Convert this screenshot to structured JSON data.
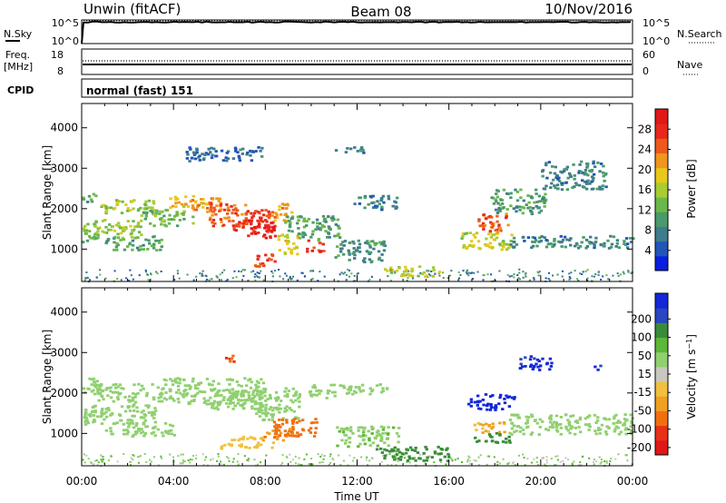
{
  "header": {
    "radar": "Unwin (fitACF)",
    "beam": "Beam 08",
    "date": "10/Nov/2016"
  },
  "top_panels": {
    "nsky": {
      "label": "N.Sky",
      "ticks": [
        "10^5",
        "10^0"
      ]
    },
    "nsearch": {
      "label": "N.Search",
      "ticks": [
        "10^5",
        "10^0"
      ]
    },
    "freq": {
      "label": "Freq.",
      "unit": "[MHz]",
      "ticks": [
        "18",
        "8"
      ]
    },
    "nave": {
      "label": "Nave",
      "ticks": [
        "60",
        "0"
      ]
    },
    "cpid": {
      "label": "CPID",
      "value": "normal (fast) 151"
    }
  },
  "chart_data": [
    {
      "type": "heatmap",
      "name": "power",
      "xlabel": "",
      "ylabel": "Slant Range [km]",
      "x_ticks": [
        "00:00",
        "04:00",
        "08:00",
        "12:00",
        "16:00",
        "20:00",
        "00:00"
      ],
      "x_range_hours": [
        0,
        24
      ],
      "y_ticks": [
        1000,
        2000,
        3000,
        4000
      ],
      "ylim": [
        200,
        4600
      ],
      "colorbar": {
        "label": "Power [dB]",
        "ticks": [
          4,
          8,
          12,
          16,
          20,
          24,
          28
        ],
        "range": [
          0,
          32
        ],
        "colors": [
          "#0a1ee0",
          "#2255b8",
          "#3f7c8c",
          "#4a9a6c",
          "#6bb84a",
          "#a8cc32",
          "#e8c81a",
          "#f0961c",
          "#ee5a1c",
          "#e8281c",
          "#e01818"
        ]
      },
      "regions": [
        {
          "t": [
            0.0,
            0.7
          ],
          "r": [
            1200,
            1700
          ],
          "v": 13
        },
        {
          "t": [
            0.0,
            0.6
          ],
          "r": [
            2150,
            2400
          ],
          "v": 10
        },
        {
          "t": [
            0.4,
            2.6
          ],
          "r": [
            1300,
            1750
          ],
          "v": 15
        },
        {
          "t": [
            0.8,
            3.2
          ],
          "r": [
            1900,
            2250
          ],
          "v": 16
        },
        {
          "t": [
            1.0,
            3.5
          ],
          "r": [
            1000,
            1350
          ],
          "v": 11
        },
        {
          "t": [
            2.5,
            4.8
          ],
          "r": [
            1600,
            2000
          ],
          "v": 13
        },
        {
          "t": [
            3.8,
            5.6
          ],
          "r": [
            2050,
            2350
          ],
          "v": 20
        },
        {
          "t": [
            4.6,
            6.0
          ],
          "r": [
            1950,
            2300
          ],
          "v": 23
        },
        {
          "t": [
            5.5,
            7.2
          ],
          "r": [
            1600,
            2150
          ],
          "v": 25
        },
        {
          "t": [
            6.5,
            8.3
          ],
          "r": [
            1450,
            2000
          ],
          "v": 27
        },
        {
          "t": [
            7.2,
            8.5
          ],
          "r": [
            1300,
            1750
          ],
          "v": 29
        },
        {
          "t": [
            8.2,
            9.1
          ],
          "r": [
            1700,
            2150
          ],
          "v": 21
        },
        {
          "t": [
            7.5,
            8.5
          ],
          "r": [
            600,
            900
          ],
          "v": 27
        },
        {
          "t": [
            8.5,
            9.4
          ],
          "r": [
            900,
            1400
          ],
          "v": 18
        },
        {
          "t": [
            9.7,
            10.5
          ],
          "r": [
            950,
            1250
          ],
          "v": 27
        },
        {
          "t": [
            8.8,
            11.2
          ],
          "r": [
            1250,
            1850
          ],
          "v": 11
        },
        {
          "t": [
            11.0,
            13.2
          ],
          "r": [
            700,
            1250
          ],
          "v": 9
        },
        {
          "t": [
            11.8,
            13.7
          ],
          "r": [
            2000,
            2350
          ],
          "v": 8
        },
        {
          "t": [
            13.0,
            15.6
          ],
          "r": [
            350,
            600
          ],
          "v": 17
        },
        {
          "t": [
            11.0,
            12.5
          ],
          "r": [
            3400,
            3550
          ],
          "v": 7
        },
        {
          "t": [
            16.5,
            18.8
          ],
          "r": [
            1000,
            1450
          ],
          "v": 17
        },
        {
          "t": [
            17.2,
            18.6
          ],
          "r": [
            1450,
            1900
          ],
          "v": 25
        },
        {
          "t": [
            17.8,
            20.2
          ],
          "r": [
            1900,
            2500
          ],
          "v": 10
        },
        {
          "t": [
            18.5,
            24.0
          ],
          "r": [
            1050,
            1350
          ],
          "v": 8
        },
        {
          "t": [
            20.0,
            22.8
          ],
          "r": [
            2500,
            3200
          ],
          "v": 8
        },
        {
          "t": [
            4.5,
            7.8
          ],
          "r": [
            3200,
            3550
          ],
          "v": 6
        }
      ]
    },
    {
      "type": "heatmap",
      "name": "velocity",
      "xlabel": "Time UT",
      "ylabel": "Slant Range [km]",
      "x_ticks": [
        "00:00",
        "04:00",
        "08:00",
        "12:00",
        "16:00",
        "20:00",
        "00:00"
      ],
      "x_range_hours": [
        0,
        24
      ],
      "y_ticks": [
        1000,
        2000,
        3000,
        4000
      ],
      "ylim": [
        200,
        4600
      ],
      "colorbar": {
        "label": "Velocity [m s^-1]",
        "ticks": [
          200,
          100,
          50,
          15,
          -15,
          -50,
          -100,
          -200
        ],
        "colors": [
          "#1428d8",
          "#2a46c0",
          "#3a8c3a",
          "#5cb838",
          "#90d070",
          "#c8c8c0",
          "#f0c040",
          "#f0a020",
          "#f07010",
          "#e83018",
          "#e01818"
        ]
      },
      "regions": [
        {
          "t": [
            0.0,
            3.2
          ],
          "r": [
            1250,
            1750
          ],
          "v": 0
        },
        {
          "t": [
            0.5,
            3.5
          ],
          "r": [
            1800,
            2250
          ],
          "v": 0
        },
        {
          "t": [
            0.0,
            0.8
          ],
          "r": [
            2000,
            2400
          ],
          "v": 0
        },
        {
          "t": [
            1.0,
            4.0
          ],
          "r": [
            950,
            1300
          ],
          "v": 0
        },
        {
          "t": [
            3.5,
            8.0
          ],
          "r": [
            1750,
            2400
          ],
          "v": 0
        },
        {
          "t": [
            5.5,
            9.5
          ],
          "r": [
            1600,
            2150
          ],
          "v": 0
        },
        {
          "t": [
            7.5,
            9.5
          ],
          "r": [
            1350,
            1700
          ],
          "v": 0
        },
        {
          "t": [
            6.0,
            8.3
          ],
          "r": [
            650,
            950
          ],
          "v": -60
        },
        {
          "t": [
            7.8,
            9.3
          ],
          "r": [
            850,
            1150
          ],
          "v": -150
        },
        {
          "t": [
            8.3,
            10.2
          ],
          "r": [
            950,
            1400
          ],
          "v": -200
        },
        {
          "t": [
            9.8,
            11.0
          ],
          "r": [
            1900,
            2250
          ],
          "v": 0
        },
        {
          "t": [
            11.2,
            13.5
          ],
          "r": [
            2000,
            2250
          ],
          "v": 0
        },
        {
          "t": [
            11.0,
            13.8
          ],
          "r": [
            700,
            1200
          ],
          "v": 10
        },
        {
          "t": [
            12.8,
            16.0
          ],
          "r": [
            350,
            700
          ],
          "v": 40
        },
        {
          "t": [
            6.1,
            6.6
          ],
          "r": [
            2750,
            2950
          ],
          "v": -220
        },
        {
          "t": [
            16.8,
            18.8
          ],
          "r": [
            1600,
            2000
          ],
          "v": 230
        },
        {
          "t": [
            17.0,
            18.5
          ],
          "r": [
            1050,
            1300
          ],
          "v": -80
        },
        {
          "t": [
            17.0,
            18.6
          ],
          "r": [
            800,
            1050
          ],
          "v": 60
        },
        {
          "t": [
            18.6,
            24.0
          ],
          "r": [
            1000,
            1500
          ],
          "v": 0
        },
        {
          "t": [
            19.0,
            20.5
          ],
          "r": [
            2600,
            2950
          ],
          "v": 180
        },
        {
          "t": [
            22.3,
            22.6
          ],
          "r": [
            2600,
            2800
          ],
          "v": 150
        }
      ]
    }
  ]
}
